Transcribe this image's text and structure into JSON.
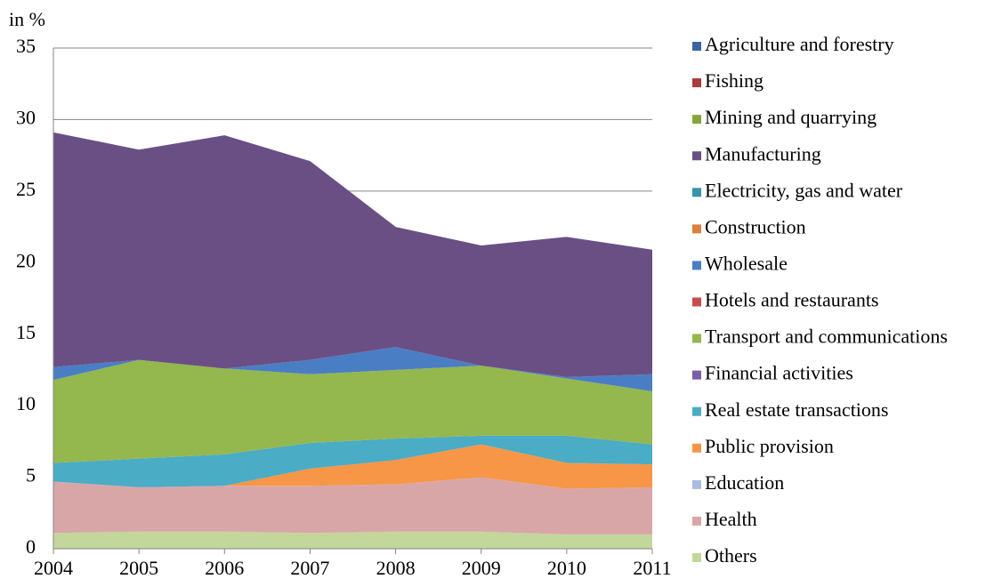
{
  "chart_data": {
    "type": "stacked_area",
    "ylabel": "in %",
    "x": [
      2004,
      2005,
      2006,
      2007,
      2008,
      2009,
      2010,
      2011
    ],
    "xlim": [
      2004,
      2011
    ],
    "xticks": [
      2004,
      2005,
      2006,
      2007,
      2008,
      2009,
      2010,
      2011
    ],
    "ylim": [
      0,
      35
    ],
    "yticks": [
      0,
      5,
      10,
      15,
      20,
      25,
      30,
      35
    ],
    "grid": true,
    "legend": "right",
    "series": [
      {
        "name": "Agriculture and forestry",
        "color": "#3c64a0",
        "values": [
          0,
          0,
          0,
          0,
          0,
          0,
          0,
          0
        ]
      },
      {
        "name": "Fishing",
        "color": "#a83b3b",
        "values": [
          0,
          0,
          0,
          0,
          0,
          0,
          0,
          0
        ]
      },
      {
        "name": "Mining and quarrying",
        "color": "#86a63b",
        "values": [
          0,
          0,
          0,
          0,
          0,
          0,
          0,
          0
        ]
      },
      {
        "name": "Manufacturing",
        "color": "#6a4f85",
        "values": [
          16.4,
          14.7,
          16.3,
          13.9,
          8.4,
          8.4,
          9.8,
          8.7
        ]
      },
      {
        "name": "Electricity, gas and water",
        "color": "#3795a8",
        "values": [
          0,
          0,
          0,
          0,
          0,
          0,
          0,
          0
        ]
      },
      {
        "name": "Construction",
        "color": "#d9803c",
        "values": [
          0,
          0,
          0,
          0,
          0,
          0,
          0,
          0
        ]
      },
      {
        "name": "Wholesale",
        "color": "#4a7ec4",
        "values": [
          0.9,
          0,
          0,
          1.0,
          1.6,
          0,
          0.1,
          1.2
        ]
      },
      {
        "name": "Hotels and restaurants",
        "color": "#c94c4c",
        "values": [
          0,
          0,
          0,
          0,
          0,
          0,
          0,
          0
        ]
      },
      {
        "name": "Transport and communications",
        "color": "#94b74e",
        "values": [
          5.8,
          6.9,
          6.0,
          4.8,
          4.8,
          4.9,
          4.0,
          3.7
        ]
      },
      {
        "name": "Financial activities",
        "color": "#7d5fa3",
        "values": [
          0,
          0,
          0,
          0,
          0,
          0,
          0,
          0
        ]
      },
      {
        "name": "Real estate transactions",
        "color": "#4aacc5",
        "values": [
          1.3,
          2.0,
          2.2,
          1.8,
          1.5,
          0.6,
          1.9,
          1.4
        ]
      },
      {
        "name": "Public provision",
        "color": "#f79646",
        "values": [
          0,
          0,
          0,
          1.2,
          1.7,
          2.3,
          1.8,
          1.6
        ]
      },
      {
        "name": "Education",
        "color": "#a8bde0",
        "values": [
          0,
          0,
          0,
          0,
          0,
          0,
          0,
          0
        ]
      },
      {
        "name": "Health",
        "color": "#d9a6a8",
        "values": [
          3.6,
          3.1,
          3.2,
          3.3,
          3.3,
          3.8,
          3.2,
          3.3
        ]
      },
      {
        "name": "Others",
        "color": "#c3d69b",
        "values": [
          1.1,
          1.2,
          1.2,
          1.1,
          1.2,
          1.2,
          1.0,
          1.0
        ]
      }
    ]
  }
}
